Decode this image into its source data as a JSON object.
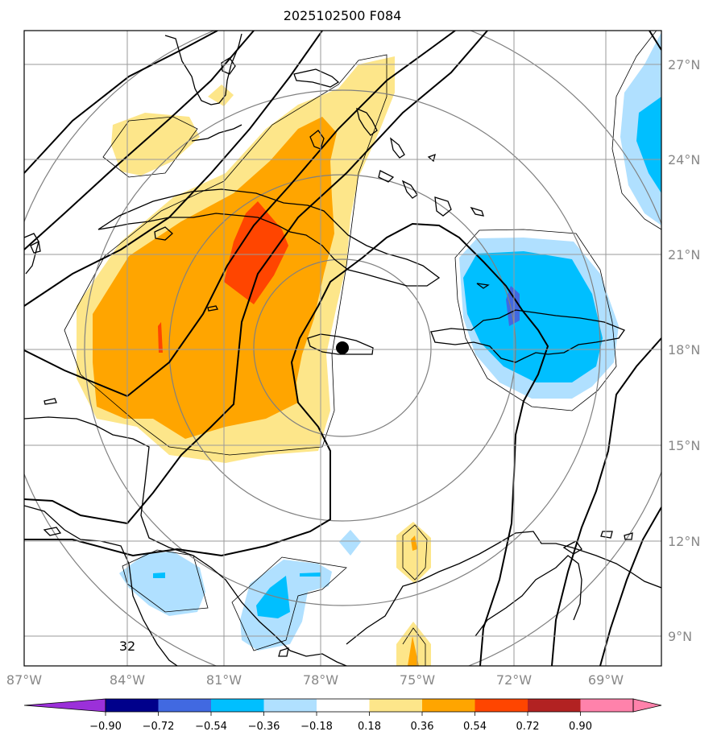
{
  "title": "2025102500 F084",
  "map": {
    "lon_range": [
      -87,
      -67.5
    ],
    "lat_range": [
      8,
      28
    ],
    "lon_ticks": [
      {
        "value": -87,
        "label": "87°W"
      },
      {
        "value": -84,
        "label": "84°W"
      },
      {
        "value": -81,
        "label": "81°W"
      },
      {
        "value": -78,
        "label": "78°W"
      },
      {
        "value": -75,
        "label": "75°W"
      },
      {
        "value": -72,
        "label": "72°W"
      },
      {
        "value": -69,
        "label": "69°W"
      }
    ],
    "lat_ticks": [
      {
        "value": 27,
        "label": "27°N"
      },
      {
        "value": 24,
        "label": "24°N"
      },
      {
        "value": 21,
        "label": "21°N"
      },
      {
        "value": 18,
        "label": "18°N"
      },
      {
        "value": 15,
        "label": "15°N"
      },
      {
        "value": 12,
        "label": "12°N"
      },
      {
        "value": 9,
        "label": "9°N"
      }
    ],
    "center_marker": {
      "lon": -77.0,
      "lat": 18.05
    },
    "contour_label": "32",
    "colors": {
      "light_yellow": "#fde68a",
      "orange": "#ffa500",
      "red_orange": "#ff4500",
      "light_blue": "#b0e0ff",
      "deep_sky_blue": "#00bfff",
      "royal_blue": "#4169e1",
      "grid": "#9a9a9a",
      "range_rings": "#808080"
    }
  },
  "colorbar": {
    "labels": [
      "−0.90",
      "−0.72",
      "−0.54",
      "−0.36",
      "−0.18",
      "0.18",
      "0.36",
      "0.54",
      "0.72",
      "0.90"
    ],
    "colors": [
      "#9b30d9",
      "#00008b",
      "#4169e1",
      "#00bfff",
      "#b0e0ff",
      "#ffffff",
      "#fde68a",
      "#ffa500",
      "#ff4500",
      "#b22222",
      "#ff82ab",
      "#ff82ab"
    ]
  }
}
